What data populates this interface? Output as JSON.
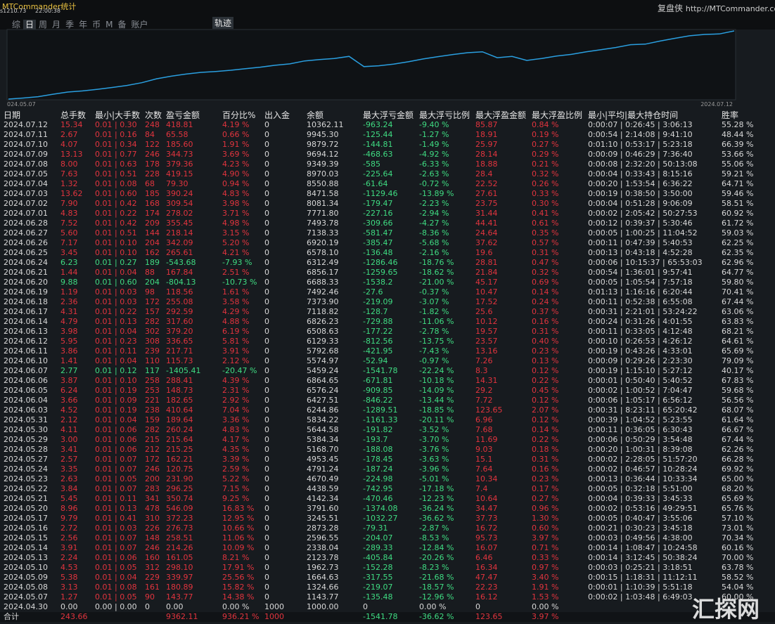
{
  "header": {
    "app": "MTCommander统计",
    "sub": [
      "s1210.73",
      "22:00:38"
    ],
    "brand": "复盘侠",
    "url": "http://MTCommander.com"
  },
  "tabs": [
    "综",
    "日",
    "周",
    "月",
    "季",
    "年",
    "币",
    "M",
    "备",
    "账户"
  ],
  "active_tab": 1,
  "chart_tab": "轨迹",
  "chart": {
    "start_label": "024.05.07",
    "end_label": "2024.07.12",
    "color": "#2a9fe0"
  },
  "table": {
    "columns": [
      "日期",
      "总手数",
      "最小|大手数",
      "次数",
      "盈亏金额",
      "百分比%",
      "出入金",
      "余额",
      "最大浮亏金额",
      "最大浮亏比例",
      "最大浮盈金额",
      "最大浮盈比例",
      "最小|平均|最大持仓时间",
      "胜率"
    ],
    "rows": [
      [
        "2024.07.12",
        "15.34",
        "0.01 | 0.30",
        "248",
        "418.81",
        "4.19 %",
        "0",
        "10362.11",
        "-963.24",
        "-9.40 %",
        "85.87",
        "0.84 %",
        "0:00:07 | 0:26:45 | 3:06:13",
        "55.28 %"
      ],
      [
        "2024.07.11",
        "2.67",
        "0.01 | 0.16",
        "84",
        "65.58",
        "0.66 %",
        "0",
        "9945.30",
        "-125.44",
        "-1.27 %",
        "18.91",
        "0.19 %",
        "0:00:54 | 2:14:08 | 9:41:10",
        "48.44 %"
      ],
      [
        "2024.07.10",
        "4.07",
        "0.01 | 0.34",
        "122",
        "185.60",
        "1.91 %",
        "0",
        "9879.72",
        "-144.81",
        "-1.49 %",
        "25.97",
        "0.27 %",
        "0:01:10 | 0:53:17 | 5:23:18",
        "66.39 %"
      ],
      [
        "2024.07.09",
        "13.13",
        "0.01 | 0.77",
        "246",
        "344.73",
        "3.69 %",
        "0",
        "9694.12",
        "-468.63",
        "-4.92 %",
        "28.14",
        "0.29 %",
        "0:00:09 | 0:46:29 | 7:36:40",
        "53.66 %"
      ],
      [
        "2024.07.08",
        "8.00",
        "0.01 | 0.63",
        "178",
        "379.36",
        "4.23 %",
        "0",
        "9349.39",
        "-585",
        "-6.33 %",
        "18.88",
        "0.21 %",
        "0:00:08 | 2:32:20 | 50:13:08",
        "55.06 %"
      ],
      [
        "2024.07.05",
        "7.63",
        "0.01 | 0.51",
        "228",
        "419.15",
        "4.90 %",
        "0",
        "8970.03",
        "-225.64",
        "-2.63 %",
        "28.4",
        "0.32 %",
        "0:00:04 | 0:33:43 | 8:15:16",
        "59.21 %"
      ],
      [
        "2024.07.04",
        "1.32",
        "0.01 | 0.08",
        "68",
        "79.30",
        "0.94 %",
        "0",
        "8550.88",
        "-61.64",
        "-0.72 %",
        "22.52",
        "0.26 %",
        "0:00:20 | 1:53:54 | 6:36:22",
        "64.71 %"
      ],
      [
        "2024.07.03",
        "13.62",
        "0.01 | 0.60",
        "185",
        "390.24",
        "4.83 %",
        "0",
        "8471.58",
        "-1129.46",
        "-13.89 %",
        "27.61",
        "0.33 %",
        "0:00:19 | 0:38:50 | 3:50:00",
        "59.46 %"
      ],
      [
        "2024.07.02",
        "7.90",
        "0.01 | 0.42",
        "168",
        "309.54",
        "3.98 %",
        "0",
        "8081.34",
        "-179.47",
        "-2.23 %",
        "23.75",
        "0.30 %",
        "0:00:04 | 0:51:28 | 9:06:09",
        "58.51 %"
      ],
      [
        "2024.07.01",
        "4.83",
        "0.01 | 0.22",
        "174",
        "278.02",
        "3.71 %",
        "0",
        "7771.80",
        "-227.16",
        "-2.94 %",
        "31.44",
        "0.41 %",
        "0:00:02 | 2:05:42 | 50:27:53",
        "60.92 %"
      ],
      [
        "2024.06.28",
        "7.52",
        "0.01 | 0.42",
        "209",
        "355.45",
        "4.98 %",
        "0",
        "7493.78",
        "-309.66",
        "-4.27 %",
        "44.41",
        "0.61 %",
        "0:00:12 | 0:39:37 | 5:30:46",
        "61.72 %"
      ],
      [
        "2024.06.27",
        "5.60",
        "0.01 | 0.51",
        "144",
        "218.14",
        "3.15 %",
        "0",
        "7138.33",
        "-581.47",
        "-8.36 %",
        "24.64",
        "0.35 %",
        "0:00:05 | 1:00:25 | 11:04:52",
        "59.03 %"
      ],
      [
        "2024.06.26",
        "7.17",
        "0.01 | 0.10",
        "204",
        "342.09",
        "5.20 %",
        "0",
        "6920.19",
        "-385.47",
        "-5.68 %",
        "37.62",
        "0.57 %",
        "0:00:11 | 0:47:39 | 5:40:53",
        "62.25 %"
      ],
      [
        "2024.06.25",
        "3.45",
        "0.01 | 0.10",
        "162",
        "265.61",
        "4.21 %",
        "0",
        "6578.10",
        "-136.48",
        "-2.16 %",
        "19.6",
        "0.31 %",
        "0:00:13 | 0:43:18 | 4:52:28",
        "62.35 %"
      ],
      [
        "2024.06.24",
        "6.23",
        "0.01 | 0.27",
        "189",
        "-543.68",
        "-7.93 %",
        "0",
        "6312.49",
        "-1286.46",
        "-18.76 %",
        "28.81",
        "0.47 %",
        "0:00:06 | 10:15:37 | 65:53:03",
        "62.96 %"
      ],
      [
        "2024.06.21",
        "1.44",
        "0.01 | 0.04",
        "88",
        "167.84",
        "2.51 %",
        "0",
        "6856.17",
        "-1259.65",
        "-18.62 %",
        "21.84",
        "0.32 %",
        "0:00:54 | 1:36:01 | 9:57:41",
        "64.77 %"
      ],
      [
        "2024.06.20",
        "9.88",
        "0.01 | 0.60",
        "204",
        "-804.13",
        "-10.73 %",
        "0",
        "6688.33",
        "-1538.2",
        "-21.00 %",
        "45.17",
        "0.69 %",
        "0:00:05 | 1:05:54 | 7:57:18",
        "59.80 %"
      ],
      [
        "2024.06.19",
        "1.19",
        "0.01 | 0.03",
        "98",
        "118.56",
        "1.61 %",
        "0",
        "7492.46",
        "-27.6",
        "-0.37 %",
        "10.47",
        "0.14 %",
        "0:01:13 | 1:16:16 | 6:20:44",
        "70.41 %"
      ],
      [
        "2024.06.18",
        "2.36",
        "0.01 | 0.03",
        "172",
        "255.08",
        "3.58 %",
        "0",
        "7373.90",
        "-219.09",
        "-3.07 %",
        "17.52",
        "0.24 %",
        "0:00:11 | 0:52:38 | 6:55:08",
        "67.44 %"
      ],
      [
        "2024.06.17",
        "4.31",
        "0.01 | 0.22",
        "157",
        "292.59",
        "4.29 %",
        "0",
        "7118.82",
        "-128.7",
        "-1.82 %",
        "25.6",
        "0.37 %",
        "0:00:31 | 2:21:01 | 53:24:22",
        "63.06 %"
      ],
      [
        "2024.06.14",
        "4.79",
        "0.01 | 0.13",
        "282",
        "317.60",
        "4.88 %",
        "0",
        "6826.23",
        "-729.88",
        "-11.06 %",
        "10.12",
        "0.16 %",
        "0:00:24 | 0:31:26 | 4:01:55",
        "63.83 %"
      ],
      [
        "2024.06.13",
        "3.98",
        "0.01 | 0.04",
        "302",
        "379.20",
        "6.19 %",
        "0",
        "6508.63",
        "-177.22",
        "-2.78 %",
        "19.57",
        "0.31 %",
        "0:00:11 | 0:33:05 | 4:12:48",
        "68.21 %"
      ],
      [
        "2024.06.12",
        "5.95",
        "0.01 | 0.23",
        "308",
        "336.65",
        "5.81 %",
        "0",
        "6129.33",
        "-812.56",
        "-13.75 %",
        "23.57",
        "0.40 %",
        "0:00:10 | 0:26:53 | 4:26:12",
        "64.61 %"
      ],
      [
        "2024.06.11",
        "3.86",
        "0.01 | 0.11",
        "239",
        "217.71",
        "3.91 %",
        "0",
        "5792.68",
        "-421.95",
        "-7.43 %",
        "13.16",
        "0.23 %",
        "0:00:19 | 0:43:26 | 4:33:01",
        "65.69 %"
      ],
      [
        "2024.06.10",
        "1.41",
        "0.01 | 0.04",
        "110",
        "115.73",
        "2.12 %",
        "0",
        "5574.97",
        "-52.94",
        "-0.97 %",
        "7.26",
        "0.13 %",
        "0:00:09 | 0:29:26 | 2:23:30",
        "79.09 %"
      ],
      [
        "2024.06.07",
        "2.77",
        "0.01 | 0.12",
        "117",
        "-1405.41",
        "-20.47 %",
        "0",
        "5459.24",
        "-1541.78",
        "-22.24 %",
        "8.3",
        "0.12 %",
        "0:00:19 | 1:15:10 | 5:27:12",
        "40.17 %"
      ],
      [
        "2024.06.06",
        "3.87",
        "0.01 | 0.10",
        "258",
        "288.41",
        "4.39 %",
        "0",
        "6864.65",
        "-671.81",
        "-10.18 %",
        "14.31",
        "0.22 %",
        "0:00:01 | 0:50:40 | 5:40:52",
        "67.83 %"
      ],
      [
        "2024.06.05",
        "6.24",
        "0.01 | 0.19",
        "253",
        "148.73",
        "2.31 %",
        "0",
        "6576.24",
        "-909.85",
        "-14.09 %",
        "29.2",
        "0.45 %",
        "0:00:02 | 1:00:52 | 7:04:47",
        "59.68 %"
      ],
      [
        "2024.06.04",
        "3.66",
        "0.01 | 0.09",
        "221",
        "182.65",
        "2.92 %",
        "0",
        "6427.51",
        "-846.22",
        "-13.44 %",
        "7.72",
        "0.12 %",
        "0:00:06 | 1:05:17 | 6:56:12",
        "56.56 %"
      ],
      [
        "2024.06.03",
        "4.52",
        "0.01 | 0.19",
        "238",
        "410.64",
        "7.04 %",
        "0",
        "6244.86",
        "-1289.51",
        "-18.85 %",
        "123.65",
        "2.07 %",
        "0:00:31 | 8:23:11 | 65:20:42",
        "68.07 %"
      ],
      [
        "2024.05.31",
        "2.12",
        "0.01 | 0.04",
        "159",
        "189.64",
        "3.36 %",
        "0",
        "5834.22",
        "-1161.33",
        "-20.11 %",
        "6.96",
        "0.12 %",
        "0:00:39 | 1:04:52 | 5:23:55",
        "61.64 %"
      ],
      [
        "2024.05.30",
        "4.11",
        "0.01 | 0.06",
        "282",
        "260.24",
        "4.83 %",
        "0",
        "5644.58",
        "-191.82",
        "-3.52 %",
        "7.68",
        "0.14 %",
        "0:00:11 | 0:36:05 | 6:30:43",
        "66.67 %"
      ],
      [
        "2024.05.29",
        "3.00",
        "0.01 | 0.06",
        "215",
        "215.64",
        "4.17 %",
        "0",
        "5384.34",
        "-193.7",
        "-3.70 %",
        "11.69",
        "0.22 %",
        "0:00:06 | 0:50:29 | 3:54:48",
        "67.44 %"
      ],
      [
        "2024.05.28",
        "3.41",
        "0.01 | 0.06",
        "212",
        "215.25",
        "4.35 %",
        "0",
        "5168.70",
        "-188.08",
        "-3.76 %",
        "9.03",
        "0.18 %",
        "0:00:20 | 1:00:31 | 8:39:08",
        "62.26 %"
      ],
      [
        "2024.05.27",
        "2.57",
        "0.01 | 0.07",
        "172",
        "162.21",
        "3.39 %",
        "0",
        "4953.45",
        "-178.45",
        "-3.63 %",
        "15.1",
        "0.31 %",
        "0:00:02 | 2:28:05 | 51:57:20",
        "66.28 %"
      ],
      [
        "2024.05.24",
        "3.35",
        "0.01 | 0.07",
        "246",
        "120.75",
        "2.59 %",
        "0",
        "4791.24",
        "-187.24",
        "-3.96 %",
        "7.64",
        "0.16 %",
        "0:00:02 | 0:46:57 | 10:28:24",
        "69.92 %"
      ],
      [
        "2024.05.23",
        "2.63",
        "0.01 | 0.05",
        "200",
        "231.90",
        "5.22 %",
        "0",
        "4670.49",
        "-224.98",
        "-5.01 %",
        "10.34",
        "0.23 %",
        "0:00:13 | 0:36:44 | 10:33:34",
        "65.00 %"
      ],
      [
        "2024.05.22",
        "3.84",
        "0.01 | 0.07",
        "283",
        "296.25",
        "7.15 %",
        "0",
        "4438.59",
        "-742.95",
        "-17.18 %",
        "7.4",
        "0.17 %",
        "0:00:05 | 0:32:18 | 5:51:00",
        "68.20 %"
      ],
      [
        "2024.05.21",
        "5.45",
        "0.01 | 0.11",
        "341",
        "350.74",
        "9.25 %",
        "0",
        "4142.34",
        "-470.46",
        "-12.23 %",
        "10.64",
        "0.27 %",
        "0:00:04 | 0:39:33 | 3:45:33",
        "65.69 %"
      ],
      [
        "2024.05.20",
        "8.96",
        "0.01 | 0.13",
        "478",
        "546.09",
        "16.83 %",
        "0",
        "3791.60",
        "-1374.08",
        "-36.24 %",
        "34.47",
        "0.96 %",
        "0:00:02 | 0:53:16 | 49:29:51",
        "65.76 %"
      ],
      [
        "2024.05.17",
        "9.79",
        "0.01 | 0.41",
        "310",
        "372.23",
        "12.95 %",
        "0",
        "3245.51",
        "-1032.27",
        "-36.62 %",
        "37.73",
        "1.30 %",
        "0:00:05 | 0:40:47 | 3:55:06",
        "57.10 %"
      ],
      [
        "2024.05.16",
        "2.72",
        "0.01 | 0.03",
        "226",
        "276.73",
        "10.66 %",
        "0",
        "2873.28",
        "-79.31",
        "-2.87 %",
        "16.72",
        "0.60 %",
        "0:00:21 | 0:30:23 | 3:45:18",
        "73.01 %"
      ],
      [
        "2024.05.15",
        "2.56",
        "0.01 | 0.07",
        "148",
        "258.51",
        "11.06 %",
        "0",
        "2596.55",
        "-204.07",
        "-8.53 %",
        "95.73",
        "3.97 %",
        "0:00:03 | 0:49:56 | 4:38:00",
        "70.34 %"
      ],
      [
        "2024.05.14",
        "3.91",
        "0.01 | 0.07",
        "246",
        "214.26",
        "10.09 %",
        "0",
        "2338.04",
        "-289.33",
        "-12.84 %",
        "16.07",
        "0.71 %",
        "0:00:14 | 1:08:47 | 10:24:58",
        "60.16 %"
      ],
      [
        "2024.05.13",
        "2.24",
        "0.01 | 0.06",
        "160",
        "161.05",
        "8.21 %",
        "0",
        "2123.78",
        "-405.84",
        "-20.26 %",
        "6.46",
        "0.33 %",
        "0:00:14 | 3:12:45 | 50:38:24",
        "70.00 %"
      ],
      [
        "2024.05.10",
        "4.53",
        "0.01 | 0.05",
        "312",
        "298.10",
        "17.91 %",
        "0",
        "1962.73",
        "-152.28",
        "-8.23 %",
        "16.34",
        "0.97 %",
        "0:00:03 | 0:25:21 | 3:18:51",
        "63.78 %"
      ],
      [
        "2024.05.09",
        "5.38",
        "0.01 | 0.04",
        "229",
        "339.97",
        "25.56 %",
        "0",
        "1664.63",
        "-317.55",
        "-21.68 %",
        "47.47",
        "3.40 %",
        "0:00:15 | 1:18:31 | 11:12:11",
        "58.52 %"
      ],
      [
        "2024.05.08",
        "3.13",
        "0.01 | 0.08",
        "161",
        "180.89",
        "15.82 %",
        "0",
        "1324.66",
        "-219.07",
        "-18.57 %",
        "22.23",
        "1.91 %",
        "0:00:01 | 1:10:39 | 5:51:18",
        "54.04 %"
      ],
      [
        "2024.05.07",
        "1.27",
        "0.01 | 0.05",
        "90",
        "143.77",
        "14.38 %",
        "0",
        "1143.77",
        "-135.48",
        "-12.96 %",
        "16.12",
        "1.53 %",
        "0:00:02 | 1:03:48 | 6:49:03",
        "60.00 %"
      ],
      [
        "2024.04.30",
        "0.00",
        "0.00 | 0.00",
        "0",
        "0.00",
        "0.00 %",
        "1000",
        "1000.00",
        "0",
        "0.00 %",
        "0",
        "0.00 %",
        null,
        null
      ]
    ],
    "total": [
      "合计",
      "243.66",
      null,
      null,
      "9362.11",
      "936.21 %",
      "1000",
      null,
      "-1541.78",
      "-36.62 %",
      "123.65",
      "3.97 %",
      null,
      null
    ]
  },
  "watermark": "汇探网"
}
